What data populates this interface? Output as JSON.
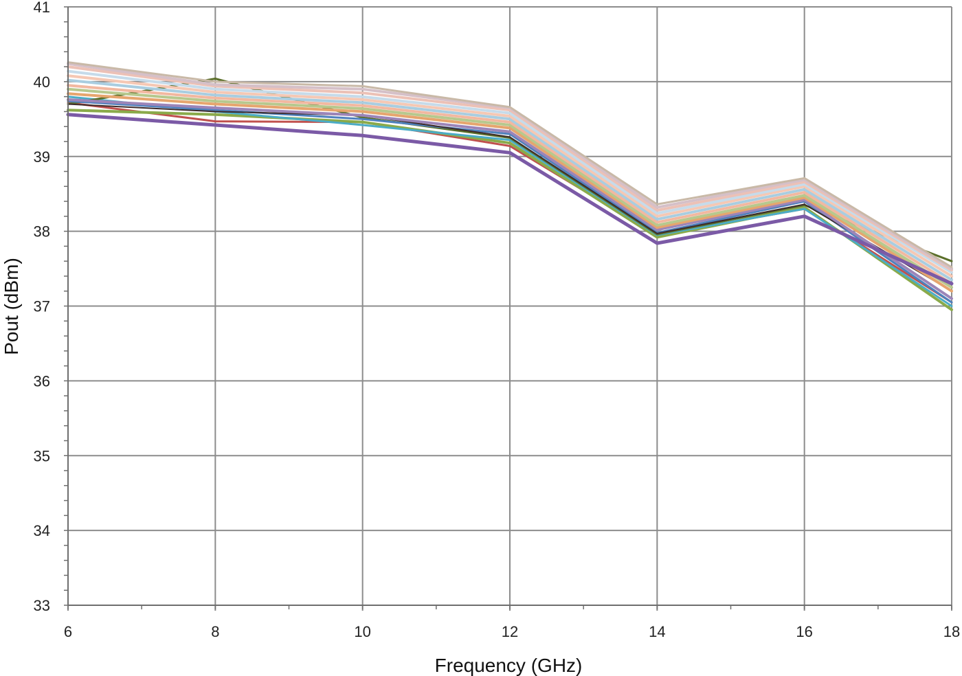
{
  "chart_data": {
    "type": "line",
    "title": "",
    "xlabel": "Frequency (GHz)",
    "ylabel": "Pout (dBm)",
    "xlim": [
      6,
      18
    ],
    "ylim": [
      33,
      41
    ],
    "x_ticks": [
      "6",
      "8",
      "10",
      "12",
      "14",
      "16",
      "18"
    ],
    "y_ticks": [
      "33",
      "34",
      "35",
      "36",
      "37",
      "38",
      "39",
      "40",
      "41"
    ],
    "grid": true,
    "legend": "none",
    "x": [
      6,
      8,
      10,
      12,
      14,
      16,
      18
    ],
    "series": [
      {
        "color": "#7b5aa6",
        "width": 5,
        "values": [
          39.56,
          39.42,
          39.28,
          39.05,
          37.84,
          38.2,
          37.3
        ]
      },
      {
        "color": "#c0504d",
        "width": 3,
        "values": [
          39.72,
          39.47,
          39.46,
          39.14,
          37.95,
          38.3,
          37.05
        ]
      },
      {
        "color": "#8aaa4a",
        "width": 4,
        "values": [
          39.62,
          39.56,
          39.46,
          39.18,
          37.92,
          38.32,
          36.95
        ]
      },
      {
        "color": "#4bacc6",
        "width": 3,
        "values": [
          39.8,
          39.6,
          39.42,
          39.22,
          37.95,
          38.3,
          37.0
        ]
      },
      {
        "color": "#5b6f2a",
        "width": 3,
        "values": [
          39.7,
          40.04,
          39.52,
          39.25,
          37.96,
          38.35,
          37.6
        ]
      },
      {
        "color": "#4f81bd",
        "width": 3,
        "values": [
          39.74,
          39.62,
          39.5,
          39.3,
          37.98,
          38.4,
          37.05
        ]
      },
      {
        "color": "#3d2b2b",
        "width": 2,
        "values": [
          39.7,
          39.6,
          39.55,
          39.26,
          37.97,
          38.36,
          37.2
        ]
      },
      {
        "color": "#9c85b8",
        "width": 4,
        "values": [
          39.76,
          39.65,
          39.55,
          39.33,
          38.02,
          38.42,
          37.1
        ]
      },
      {
        "color": "#e6a56e",
        "width": 4,
        "values": [
          39.84,
          39.7,
          39.6,
          39.38,
          38.05,
          38.45,
          37.2
        ]
      },
      {
        "color": "#b7c88e",
        "width": 4,
        "values": [
          39.9,
          39.74,
          39.64,
          39.42,
          38.08,
          38.48,
          37.25
        ]
      },
      {
        "color": "#f2b8a0",
        "width": 4,
        "values": [
          39.95,
          39.78,
          39.68,
          39.46,
          38.12,
          38.52,
          37.3
        ]
      },
      {
        "color": "#a9cde0",
        "width": 4,
        "values": [
          40.02,
          39.82,
          39.72,
          39.5,
          38.16,
          38.56,
          37.35
        ]
      },
      {
        "color": "#f5c8b4",
        "width": 4,
        "values": [
          40.08,
          39.86,
          39.76,
          39.54,
          38.2,
          38.6,
          37.4
        ]
      },
      {
        "color": "#c6dbea",
        "width": 4,
        "values": [
          40.14,
          39.9,
          39.8,
          39.58,
          38.24,
          38.63,
          37.45
        ]
      },
      {
        "color": "#ecc1b6",
        "width": 4,
        "values": [
          40.2,
          39.94,
          39.85,
          39.62,
          38.28,
          38.66,
          37.48
        ]
      },
      {
        "color": "#d5c0c8",
        "width": 4,
        "values": [
          40.24,
          39.96,
          39.9,
          39.65,
          38.32,
          38.69,
          37.5
        ]
      },
      {
        "color": "#c9b9a7",
        "width": 3,
        "values": [
          40.26,
          40.0,
          39.94,
          39.66,
          38.36,
          38.71,
          37.52
        ]
      }
    ]
  }
}
